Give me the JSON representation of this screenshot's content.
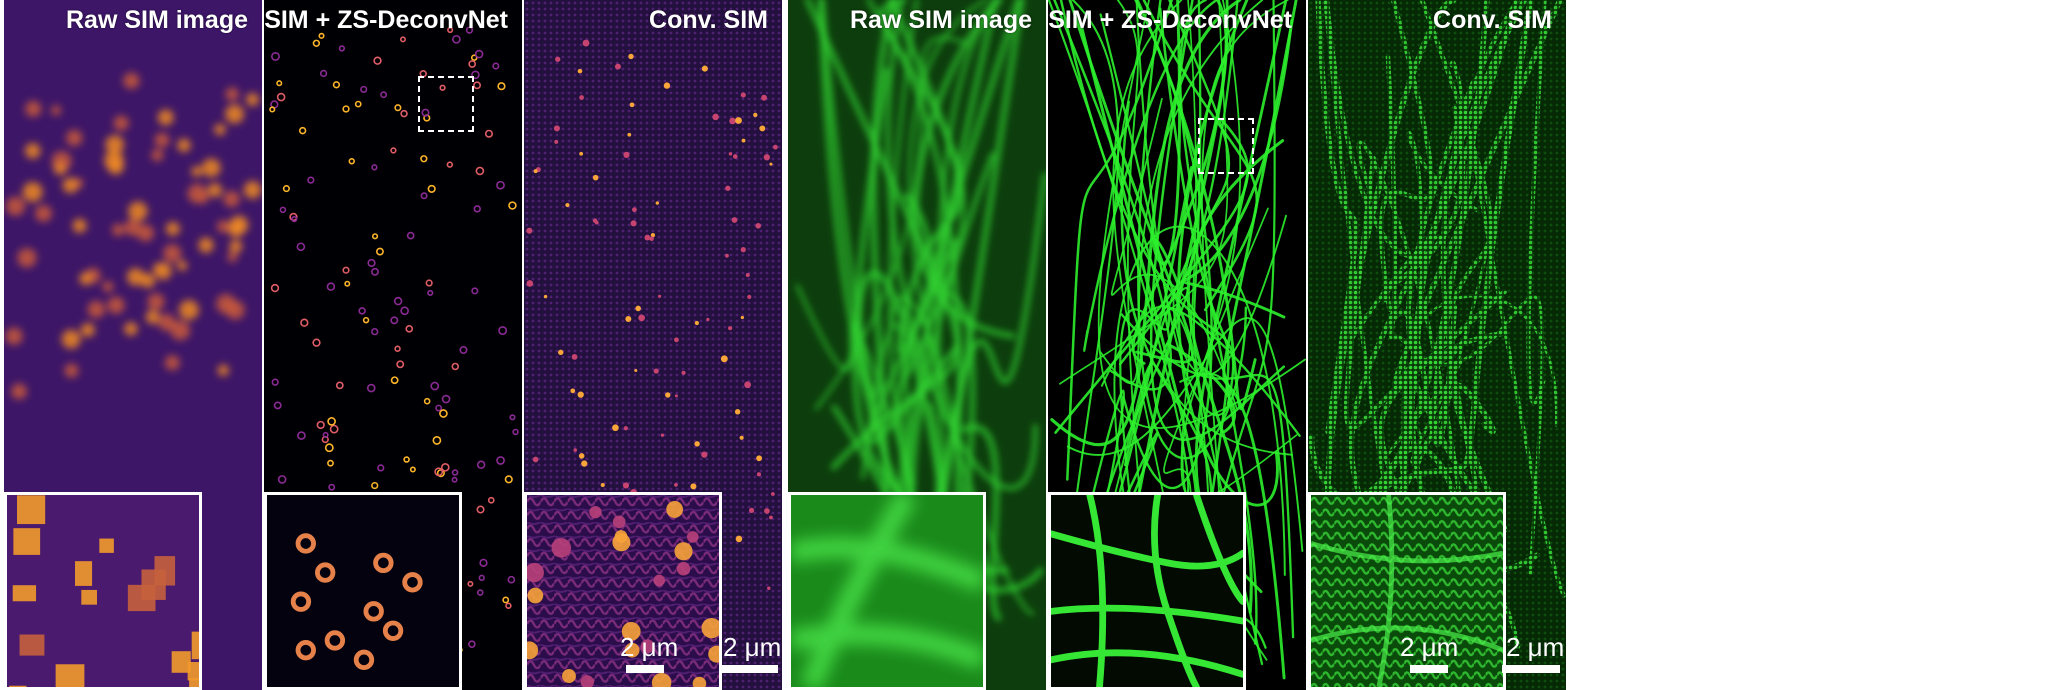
{
  "figure": {
    "groups": [
      {
        "id": "magenta",
        "colormap": "magma / inferno",
        "panels": [
          {
            "title": "Raw SIM image"
          },
          {
            "title": "SIM + ZS-DeconvNet"
          },
          {
            "title": "Conv. SIM"
          }
        ]
      },
      {
        "id": "green",
        "colormap": "green",
        "panels": [
          {
            "title": "Raw SIM image"
          },
          {
            "title": "SIM + ZS-DeconvNet"
          },
          {
            "title": "Conv. SIM"
          }
        ]
      }
    ],
    "scalebars": {
      "inset_magenta": "2 μm",
      "full_magenta": "2 μm",
      "inset_green": "2 μm",
      "full_green": "2 μm"
    },
    "colors": {
      "magma_bg": "#3a1466",
      "magma_black": "#000004",
      "magma_spot": "#fca50a",
      "green_bg": "#0b3a0b",
      "green_fiber": "#2bff2b",
      "frame": "#ffffff"
    }
  }
}
